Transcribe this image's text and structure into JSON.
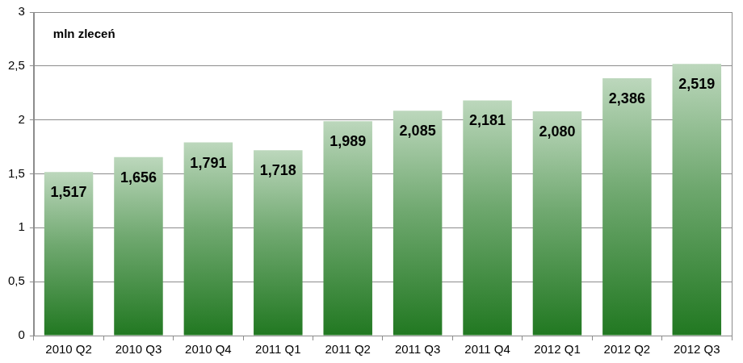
{
  "chart_data": {
    "type": "bar",
    "y_label": "mln zleceń",
    "categories": [
      "2010 Q2",
      "2010 Q3",
      "2010 Q4",
      "2011 Q1",
      "2011 Q2",
      "2011 Q3",
      "2011 Q4",
      "2012 Q1",
      "2012 Q2",
      "2012 Q3"
    ],
    "values": [
      1.517,
      1.656,
      1.791,
      1.718,
      1.989,
      2.085,
      2.181,
      2.08,
      2.386,
      2.519
    ],
    "value_labels": [
      "1,517",
      "1,656",
      "1,791",
      "1,718",
      "1,989",
      "2,085",
      "2,181",
      "2,080",
      "2,386",
      "2,519"
    ],
    "color": "#217821",
    "ylim": [
      0,
      3
    ],
    "yticks": [
      0,
      {
        "value": 0.5,
        "label": "0,5"
      },
      1,
      {
        "value": 1.5,
        "label": "1,5"
      },
      2,
      {
        "value": 2.5,
        "label": "2,5"
      },
      3
    ],
    "grid": true,
    "data_labels": true
  }
}
